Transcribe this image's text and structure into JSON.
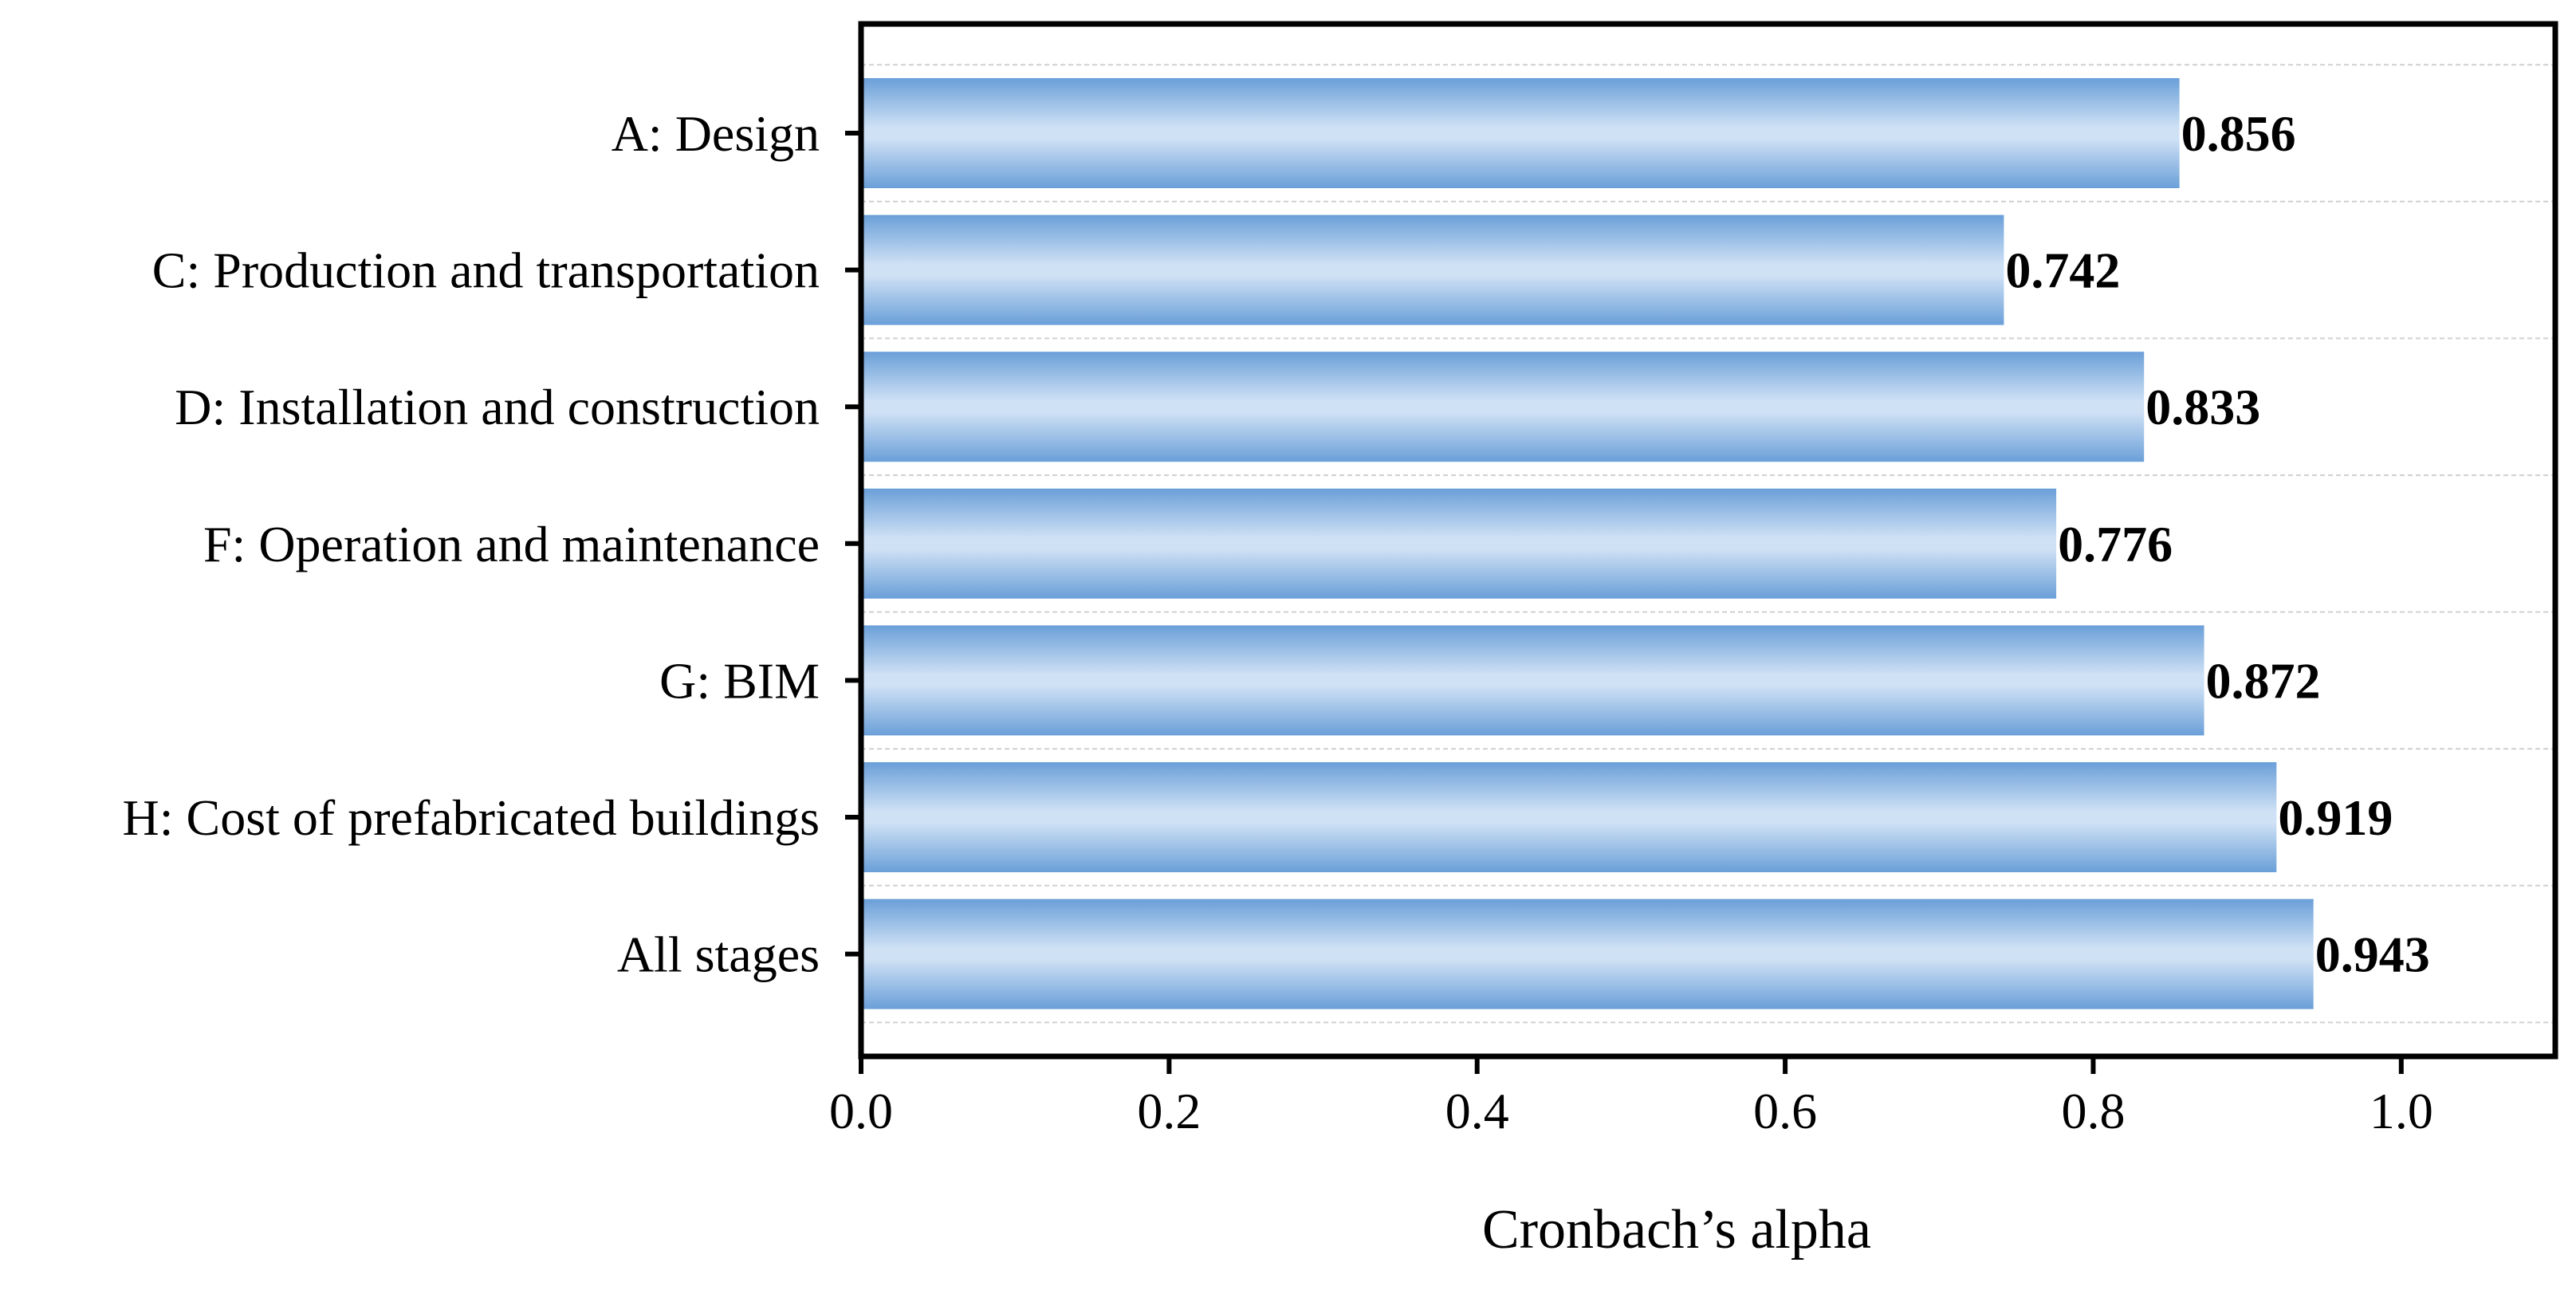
{
  "chart_data": {
    "type": "bar",
    "orientation": "horizontal",
    "title": "",
    "xlabel": "Cronbach’s alpha",
    "ylabel": "",
    "xlim": [
      0,
      1.1
    ],
    "xticks": [
      "0.0",
      "0.2",
      "0.4",
      "0.6",
      "0.8",
      "1.0"
    ],
    "xtick_values": [
      0.0,
      0.2,
      0.4,
      0.6,
      0.8,
      1.0
    ],
    "categories": [
      "A: Design",
      "C: Production and transportation",
      "D: Installation and construction",
      "F: Operation and maintenance",
      "G: BIM",
      "H: Cost of prefabricated buildings",
      "All stages"
    ],
    "values": [
      0.856,
      0.742,
      0.833,
      0.776,
      0.872,
      0.919,
      0.943
    ],
    "value_labels": [
      "0.856",
      "0.742",
      "0.833",
      "0.776",
      "0.872",
      "0.919",
      "0.943"
    ],
    "grid": "horizontal dashed",
    "legend": "none",
    "colors": {
      "bar_edge": "#6a9fd8",
      "bar_center": "#cfe1f5",
      "axis": "#000000",
      "grid": "#d0d0d0",
      "text": "#000000"
    }
  }
}
